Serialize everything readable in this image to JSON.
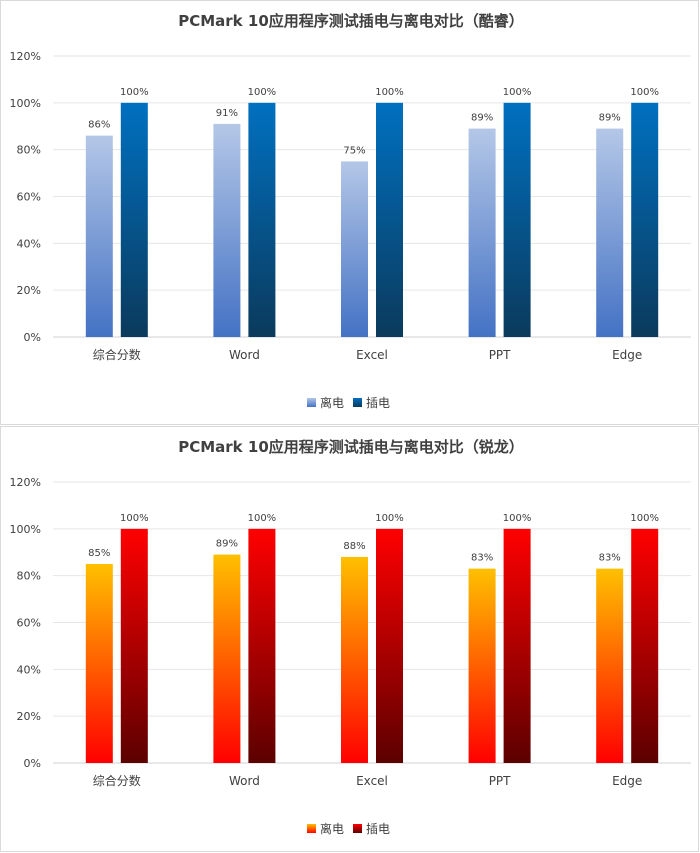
{
  "chart_data": [
    {
      "type": "bar",
      "title": "PCMark 10应用程序测试插电与离电对比（酷睿）",
      "categories": [
        "综合分数",
        "Word",
        "Excel",
        "PPT",
        "Edge"
      ],
      "series": [
        {
          "name": "离电",
          "values": [
            86,
            91,
            75,
            89,
            89
          ],
          "labels": [
            "86%",
            "91%",
            "75%",
            "89%",
            "89%"
          ]
        },
        {
          "name": "插电",
          "values": [
            100,
            100,
            100,
            100,
            100
          ],
          "labels": [
            "100%",
            "100%",
            "100%",
            "100%",
            "100%"
          ]
        }
      ],
      "yticks": [
        "0%",
        "20%",
        "40%",
        "60%",
        "80%",
        "100%",
        "120%"
      ],
      "ylim": [
        0,
        120
      ],
      "unit": "%",
      "legend": "bottom",
      "grid": true,
      "colors": {
        "离电": {
          "top": "#b4c7e7",
          "bottom": "#4472c4"
        },
        "插电": {
          "top": "#0070c0",
          "bottom": "#0b3a5c"
        }
      }
    },
    {
      "type": "bar",
      "title": "PCMark 10应用程序测试插电与离电对比（锐龙）",
      "categories": [
        "综合分数",
        "Word",
        "Excel",
        "PPT",
        "Edge"
      ],
      "series": [
        {
          "name": "离电",
          "values": [
            85,
            89,
            88,
            83,
            83
          ],
          "labels": [
            "85%",
            "89%",
            "88%",
            "83%",
            "83%"
          ]
        },
        {
          "name": "插电",
          "values": [
            100,
            100,
            100,
            100,
            100
          ],
          "labels": [
            "100%",
            "100%",
            "100%",
            "100%",
            "100%"
          ]
        }
      ],
      "yticks": [
        "0%",
        "20%",
        "40%",
        "60%",
        "80%",
        "100%",
        "120%"
      ],
      "ylim": [
        0,
        120
      ],
      "unit": "%",
      "legend": "bottom",
      "grid": true,
      "colors": {
        "离电": {
          "top": "#ffc000",
          "bottom": "#ff0000"
        },
        "插电": {
          "top": "#ff0000",
          "bottom": "#5c0000"
        }
      }
    }
  ]
}
